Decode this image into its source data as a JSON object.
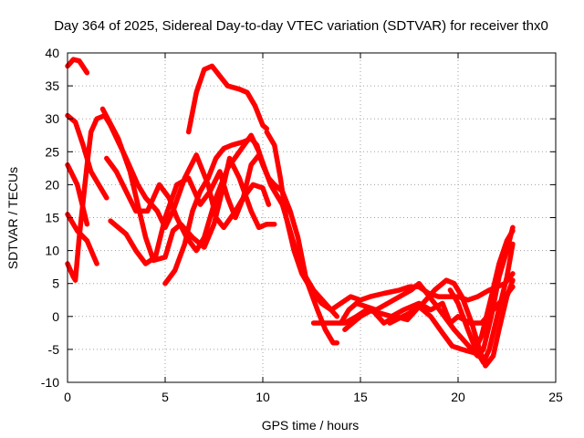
{
  "chart_data": {
    "type": "line",
    "title": "Day 364 of 2025, Sidereal Day-to-day VTEC variation (SDTVAR) for receiver thx0",
    "xlabel": "GPS time / hours",
    "ylabel": "SDTVAR / TECUs",
    "xlim": [
      0,
      25
    ],
    "ylim": [
      -10,
      40
    ],
    "xticks": [
      0,
      5,
      10,
      15,
      20,
      25
    ],
    "yticks": [
      -10,
      -5,
      0,
      5,
      10,
      15,
      20,
      25,
      30,
      35,
      40
    ],
    "grid": true,
    "legend": "none",
    "color": "#ff0000",
    "series": [
      {
        "name": "s1",
        "points": [
          [
            0,
            38
          ],
          [
            0.3,
            39
          ],
          [
            0.6,
            38.8
          ],
          [
            1,
            37
          ]
        ]
      },
      {
        "name": "s2",
        "points": [
          [
            0,
            30.5
          ],
          [
            0.4,
            29.5
          ],
          [
            0.8,
            26
          ],
          [
            1.2,
            22
          ],
          [
            1.6,
            20
          ],
          [
            2,
            18
          ]
        ]
      },
      {
        "name": "s3",
        "points": [
          [
            0,
            23
          ],
          [
            0.5,
            20
          ],
          [
            1,
            14
          ]
        ]
      },
      {
        "name": "s4",
        "points": [
          [
            0,
            15.5
          ],
          [
            0.5,
            13
          ],
          [
            1,
            11.5
          ],
          [
            1.5,
            8
          ]
        ]
      },
      {
        "name": "s5",
        "points": [
          [
            0,
            8
          ],
          [
            0.3,
            6
          ],
          [
            0.4,
            5.5
          ],
          [
            0.6,
            12
          ],
          [
            1,
            23
          ],
          [
            1.2,
            28
          ],
          [
            1.5,
            30
          ],
          [
            1.9,
            30.5
          ],
          [
            2.2,
            29
          ],
          [
            3,
            24
          ],
          [
            3.6,
            20
          ],
          [
            4,
            18
          ],
          [
            4.6,
            16
          ],
          [
            5,
            13.5
          ],
          [
            5.4,
            16
          ],
          [
            6,
            21
          ],
          [
            6.6,
            24.5
          ],
          [
            7.2,
            20
          ],
          [
            7.6,
            15
          ],
          [
            8,
            13.5
          ],
          [
            8.6,
            16
          ],
          [
            9,
            18
          ],
          [
            9.5,
            20
          ],
          [
            10,
            19.5
          ],
          [
            10.3,
            17
          ]
        ]
      },
      {
        "name": "s6",
        "points": [
          [
            1.8,
            31.5
          ],
          [
            2.6,
            27
          ],
          [
            3.2,
            22
          ],
          [
            3.6,
            17
          ],
          [
            4,
            12
          ],
          [
            4.4,
            8.5
          ],
          [
            5,
            9
          ],
          [
            5.4,
            13
          ],
          [
            5.8,
            14
          ],
          [
            6.4,
            12
          ],
          [
            7,
            10.5
          ],
          [
            7.5,
            14
          ],
          [
            8,
            20
          ],
          [
            8.3,
            24
          ],
          [
            8.8,
            21
          ],
          [
            9.4,
            16
          ],
          [
            9.8,
            13.5
          ],
          [
            10.2,
            14
          ],
          [
            10.6,
            14
          ]
        ]
      },
      {
        "name": "s7",
        "points": [
          [
            2,
            24
          ],
          [
            2.5,
            22
          ],
          [
            3,
            19
          ],
          [
            3.5,
            16
          ],
          [
            4.1,
            16
          ],
          [
            4.7,
            20
          ],
          [
            5.2,
            18
          ],
          [
            5.6,
            15
          ],
          [
            6.1,
            12
          ],
          [
            6.6,
            10
          ],
          [
            7,
            12
          ],
          [
            7.6,
            18
          ],
          [
            8.2,
            22.5
          ],
          [
            8.8,
            25
          ],
          [
            9.4,
            27.5
          ],
          [
            9.8,
            25
          ],
          [
            10.4,
            20
          ],
          [
            10.8,
            18
          ]
        ]
      },
      {
        "name": "s8",
        "points": [
          [
            2.2,
            14.5
          ],
          [
            3,
            12.5
          ],
          [
            3.5,
            10
          ],
          [
            4,
            8
          ],
          [
            4.5,
            9
          ],
          [
            5,
            15
          ],
          [
            5.6,
            20
          ],
          [
            6.2,
            21
          ],
          [
            6.8,
            17
          ],
          [
            7.3,
            19
          ],
          [
            7.8,
            22
          ],
          [
            8.2,
            18
          ],
          [
            8.6,
            15
          ],
          [
            9,
            18
          ],
          [
            9.4,
            23
          ],
          [
            9.8,
            24.5
          ],
          [
            10.3,
            21
          ],
          [
            10.6,
            20
          ],
          [
            11,
            19
          ],
          [
            11.4,
            16
          ],
          [
            11.8,
            12
          ],
          [
            12.2,
            6
          ],
          [
            12.6,
            4
          ],
          [
            13.2,
            2
          ],
          [
            13.8,
            0
          ]
        ]
      },
      {
        "name": "s9",
        "points": [
          [
            6.2,
            28
          ],
          [
            6.6,
            34
          ],
          [
            7,
            37.5
          ],
          [
            7.4,
            38
          ],
          [
            7.8,
            36.5
          ],
          [
            8.2,
            35
          ],
          [
            8.8,
            34.5
          ],
          [
            9.2,
            34
          ],
          [
            9.6,
            32
          ],
          [
            10,
            29
          ],
          [
            10.2,
            28.5
          ]
        ]
      },
      {
        "name": "s10",
        "points": [
          [
            5,
            5
          ],
          [
            5.5,
            7
          ],
          [
            6,
            11
          ],
          [
            6.4,
            16
          ],
          [
            6.8,
            19
          ],
          [
            7.2,
            21
          ],
          [
            7.6,
            24
          ],
          [
            8,
            25.5
          ],
          [
            8.4,
            26
          ],
          [
            9,
            26.5
          ],
          [
            9.4,
            27
          ],
          [
            9.7,
            26
          ],
          [
            10,
            23
          ],
          [
            10.5,
            19.5
          ],
          [
            11,
            17
          ],
          [
            11.4,
            13
          ],
          [
            11.8,
            9
          ],
          [
            12.3,
            5
          ],
          [
            12.8,
            1
          ],
          [
            13.2,
            -2
          ],
          [
            13.6,
            -4
          ],
          [
            13.8,
            -4
          ]
        ]
      },
      {
        "name": "s11",
        "points": [
          [
            10.2,
            28
          ],
          [
            10.6,
            26
          ],
          [
            10.9,
            21
          ],
          [
            11.2,
            15
          ],
          [
            11.6,
            10
          ],
          [
            12,
            6.5
          ],
          [
            12.5,
            4
          ],
          [
            13,
            2
          ],
          [
            13.5,
            1
          ],
          [
            14,
            2
          ],
          [
            14.5,
            3
          ],
          [
            15,
            2.5
          ],
          [
            15.5,
            3
          ],
          [
            16.2,
            3.5
          ],
          [
            17,
            4
          ],
          [
            17.5,
            4.5
          ],
          [
            18,
            4.5
          ],
          [
            18.5,
            3.5
          ],
          [
            19,
            3
          ],
          [
            19.6,
            3
          ],
          [
            20,
            3
          ],
          [
            20.5,
            2.5
          ],
          [
            21,
            3
          ],
          [
            21.6,
            4
          ],
          [
            22,
            4.5
          ],
          [
            22.4,
            5
          ],
          [
            22.8,
            6.5
          ]
        ]
      },
      {
        "name": "s12",
        "points": [
          [
            12.6,
            -1
          ],
          [
            13.5,
            -1
          ],
          [
            14.2,
            -1
          ],
          [
            14.8,
            0
          ],
          [
            15.3,
            1
          ],
          [
            16,
            0.5
          ],
          [
            16.6,
            0
          ],
          [
            17.2,
            1
          ],
          [
            18,
            2
          ],
          [
            18.6,
            1
          ],
          [
            19.2,
            2
          ],
          [
            19.6,
            -1
          ],
          [
            20,
            0
          ],
          [
            20.6,
            -1
          ],
          [
            21.2,
            -1
          ],
          [
            21.8,
            1
          ],
          [
            22.4,
            3
          ],
          [
            22.8,
            4.5
          ]
        ]
      },
      {
        "name": "s13",
        "points": [
          [
            14,
            -1
          ],
          [
            14.4,
            1
          ],
          [
            14.8,
            2
          ],
          [
            15.3,
            1.5
          ],
          [
            15.8,
            1
          ],
          [
            16.4,
            2
          ],
          [
            17,
            3
          ],
          [
            17.6,
            4
          ],
          [
            18,
            5
          ],
          [
            18.4,
            3.5
          ],
          [
            18.8,
            2
          ],
          [
            19.3,
            0
          ],
          [
            19.8,
            -2
          ],
          [
            20.4,
            -4
          ],
          [
            21,
            -6
          ],
          [
            21.3,
            -5
          ],
          [
            21.7,
            0
          ],
          [
            22.1,
            6
          ],
          [
            22.5,
            10
          ],
          [
            22.8,
            13.5
          ]
        ]
      },
      {
        "name": "s14",
        "points": [
          [
            14.2,
            -2
          ],
          [
            15,
            0
          ],
          [
            15.6,
            1
          ],
          [
            16.2,
            -1
          ],
          [
            16.8,
            0
          ],
          [
            17.4,
            -0.5
          ],
          [
            18,
            1.5
          ],
          [
            18.6,
            0
          ],
          [
            19.2,
            -2.5
          ],
          [
            19.7,
            -4.5
          ],
          [
            20.2,
            -5
          ],
          [
            20.8,
            -5.5
          ],
          [
            21.2,
            -3
          ],
          [
            21.7,
            3
          ],
          [
            22.1,
            8
          ],
          [
            22.5,
            11.5
          ],
          [
            22.8,
            13
          ]
        ]
      },
      {
        "name": "s15",
        "points": [
          [
            16.5,
            -1
          ],
          [
            17.5,
            0.5
          ],
          [
            18.2,
            2
          ],
          [
            18.8,
            4
          ],
          [
            19.4,
            5.5
          ],
          [
            19.8,
            5
          ],
          [
            20.2,
            3
          ],
          [
            20.7,
            -1
          ],
          [
            21.1,
            -5
          ],
          [
            21.4,
            -7.5
          ],
          [
            21.8,
            -6
          ],
          [
            22.1,
            -2
          ],
          [
            22.5,
            3
          ],
          [
            22.8,
            5.5
          ]
        ]
      },
      {
        "name": "s16",
        "points": [
          [
            19.6,
            4
          ],
          [
            20,
            2
          ],
          [
            20.5,
            -2
          ],
          [
            20.9,
            -5
          ],
          [
            21.3,
            -7
          ],
          [
            21.6,
            -5
          ],
          [
            22,
            0
          ],
          [
            22.5,
            6
          ],
          [
            22.8,
            11
          ]
        ]
      }
    ]
  }
}
